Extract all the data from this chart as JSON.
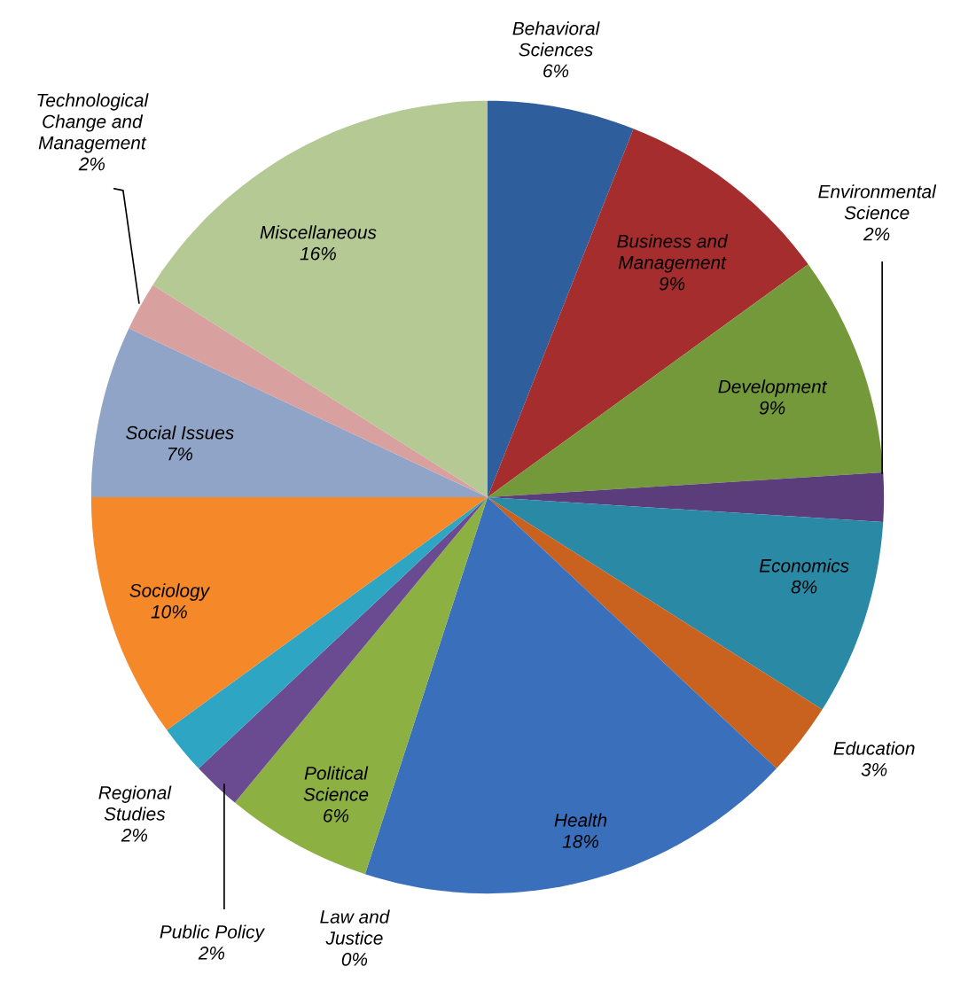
{
  "chart_data": {
    "type": "pie",
    "categories": [
      "Behavioral\nSciences",
      "Business and\nManagement",
      "Development",
      "Environmental\nScience",
      "Economics",
      "Education",
      "Health",
      "Law and\nJustice",
      "Political\nScience",
      "Public Policy",
      "Regional\nStudies",
      "Sociology",
      "Social Issues",
      "Technological\nChange and\nManagement",
      "Miscellaneous"
    ],
    "values": [
      6,
      9,
      9,
      2,
      8,
      3,
      18,
      0,
      6,
      2,
      2,
      10,
      7,
      2,
      16
    ],
    "value_labels": [
      "6%",
      "9%",
      "9%",
      "2%",
      "8%",
      "3%",
      "18%",
      "0%",
      "6%",
      "2%",
      "2%",
      "10%",
      "7%",
      "2%",
      "16%"
    ],
    "colors": [
      "#2e5e9c",
      "#a52d2d",
      "#74993a",
      "#5b3d7c",
      "#2a8aa5",
      "#c8621e",
      "#3a6fbc",
      "#c0392b",
      "#8db043",
      "#6a4a90",
      "#2ea6c3",
      "#f5892a",
      "#8fa4c6",
      "#d9a0a0",
      "#b4c994"
    ],
    "legend": false
  }
}
